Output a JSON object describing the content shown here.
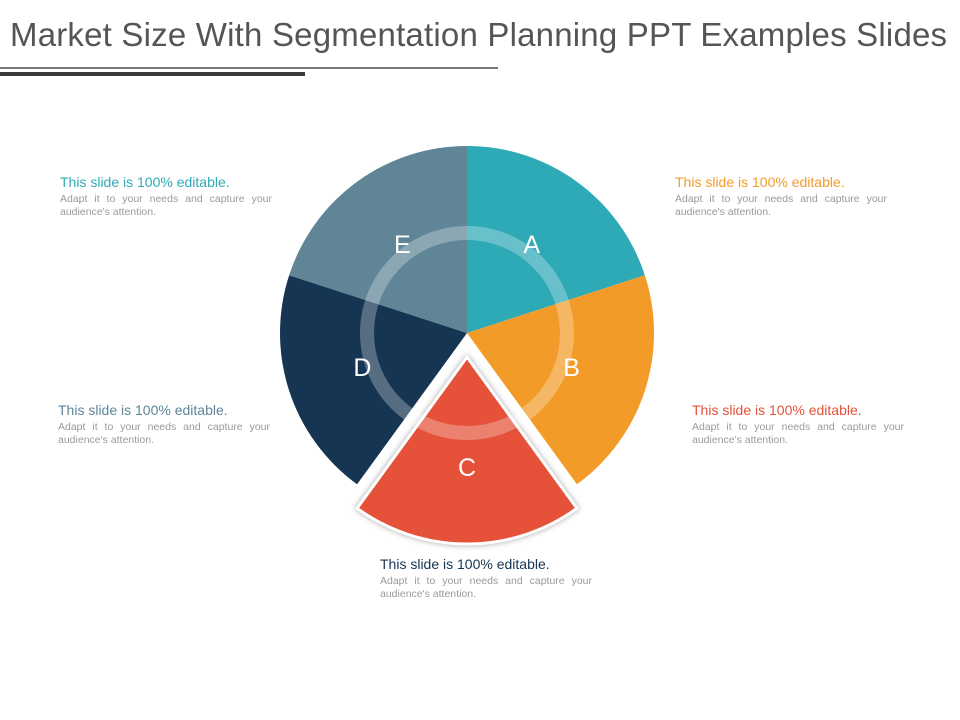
{
  "slide": {
    "title": "Market Size With Segmentation Planning PPT Examples Slides"
  },
  "segments": [
    {
      "id": "a",
      "letter": "A",
      "color": "#2eaab6",
      "heading": "This slide is 100% editable.",
      "text": "Adapt it to your needs and capture your audience's attention."
    },
    {
      "id": "b",
      "letter": "B",
      "color": "#f29b29",
      "heading": "This slide is 100% editable.",
      "text": "Adapt it to your needs and capture your audience's attention."
    },
    {
      "id": "c",
      "letter": "C",
      "color": "#e6513a",
      "heading": "This slide is 100% editable.",
      "text": "Adapt it to your needs and capture your audience's attention."
    },
    {
      "id": "d",
      "letter": "D",
      "color": "#153552",
      "heading": "This slide is 100% editable.",
      "text": "Adapt it to your needs and capture your audience's attention."
    },
    {
      "id": "e",
      "letter": "E",
      "color": "#5f8597",
      "heading": "This slide is 100% editable.",
      "text": "Adapt it to your needs and capture your audience's attention."
    }
  ]
}
